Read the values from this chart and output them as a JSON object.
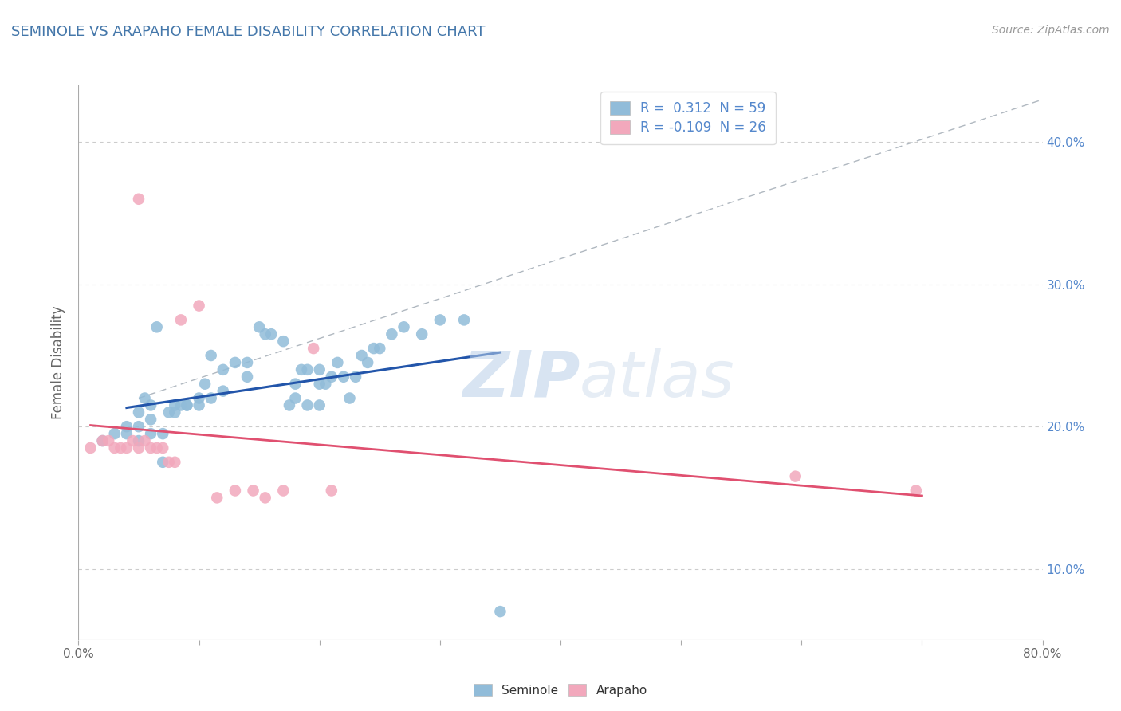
{
  "title": "SEMINOLE VS ARAPAHO FEMALE DISABILITY CORRELATION CHART",
  "source": "Source: ZipAtlas.com",
  "ylabel": "Female Disability",
  "xlim": [
    0.0,
    0.8
  ],
  "ylim": [
    0.05,
    0.44
  ],
  "xtick_positions": [
    0.0,
    0.1,
    0.2,
    0.3,
    0.4,
    0.5,
    0.6,
    0.7,
    0.8
  ],
  "yticks_right": [
    0.1,
    0.2,
    0.3,
    0.4
  ],
  "ytick_labels_right": [
    "10.0%",
    "20.0%",
    "30.0%",
    "40.0%"
  ],
  "watermark_zip": "ZIP",
  "watermark_atlas": "atlas",
  "seminole_R": "0.312",
  "seminole_N": "59",
  "arapaho_R": "-0.109",
  "arapaho_N": "26",
  "seminole_color": "#91bcd9",
  "arapaho_color": "#f2a8bc",
  "trend_seminole_color": "#2255aa",
  "trend_arapaho_color": "#e05070",
  "trend_dash_color": "#b0b8c0",
  "background_color": "#ffffff",
  "grid_color": "#cccccc",
  "title_color": "#4477aa",
  "label_color": "#666666",
  "right_axis_color": "#5588cc",
  "seminole_x": [
    0.02,
    0.03,
    0.04,
    0.04,
    0.05,
    0.05,
    0.05,
    0.055,
    0.06,
    0.06,
    0.06,
    0.065,
    0.07,
    0.07,
    0.075,
    0.08,
    0.08,
    0.085,
    0.09,
    0.09,
    0.1,
    0.1,
    0.105,
    0.11,
    0.11,
    0.12,
    0.12,
    0.13,
    0.14,
    0.14,
    0.15,
    0.155,
    0.16,
    0.17,
    0.175,
    0.18,
    0.18,
    0.185,
    0.19,
    0.19,
    0.2,
    0.2,
    0.2,
    0.205,
    0.21,
    0.215,
    0.22,
    0.225,
    0.23,
    0.235,
    0.24,
    0.245,
    0.25,
    0.26,
    0.27,
    0.285,
    0.3,
    0.32,
    0.35
  ],
  "seminole_y": [
    0.19,
    0.195,
    0.195,
    0.2,
    0.19,
    0.2,
    0.21,
    0.22,
    0.195,
    0.205,
    0.215,
    0.27,
    0.175,
    0.195,
    0.21,
    0.215,
    0.21,
    0.215,
    0.215,
    0.215,
    0.215,
    0.22,
    0.23,
    0.22,
    0.25,
    0.24,
    0.225,
    0.245,
    0.235,
    0.245,
    0.27,
    0.265,
    0.265,
    0.26,
    0.215,
    0.22,
    0.23,
    0.24,
    0.215,
    0.24,
    0.215,
    0.23,
    0.24,
    0.23,
    0.235,
    0.245,
    0.235,
    0.22,
    0.235,
    0.25,
    0.245,
    0.255,
    0.255,
    0.265,
    0.27,
    0.265,
    0.275,
    0.275,
    0.07
  ],
  "arapaho_x": [
    0.01,
    0.02,
    0.025,
    0.03,
    0.035,
    0.04,
    0.045,
    0.05,
    0.05,
    0.055,
    0.06,
    0.065,
    0.07,
    0.075,
    0.08,
    0.085,
    0.1,
    0.115,
    0.13,
    0.145,
    0.155,
    0.17,
    0.195,
    0.21,
    0.595,
    0.695
  ],
  "arapaho_y": [
    0.185,
    0.19,
    0.19,
    0.185,
    0.185,
    0.185,
    0.19,
    0.185,
    0.36,
    0.19,
    0.185,
    0.185,
    0.185,
    0.175,
    0.175,
    0.275,
    0.285,
    0.15,
    0.155,
    0.155,
    0.15,
    0.155,
    0.255,
    0.155,
    0.165,
    0.155
  ]
}
